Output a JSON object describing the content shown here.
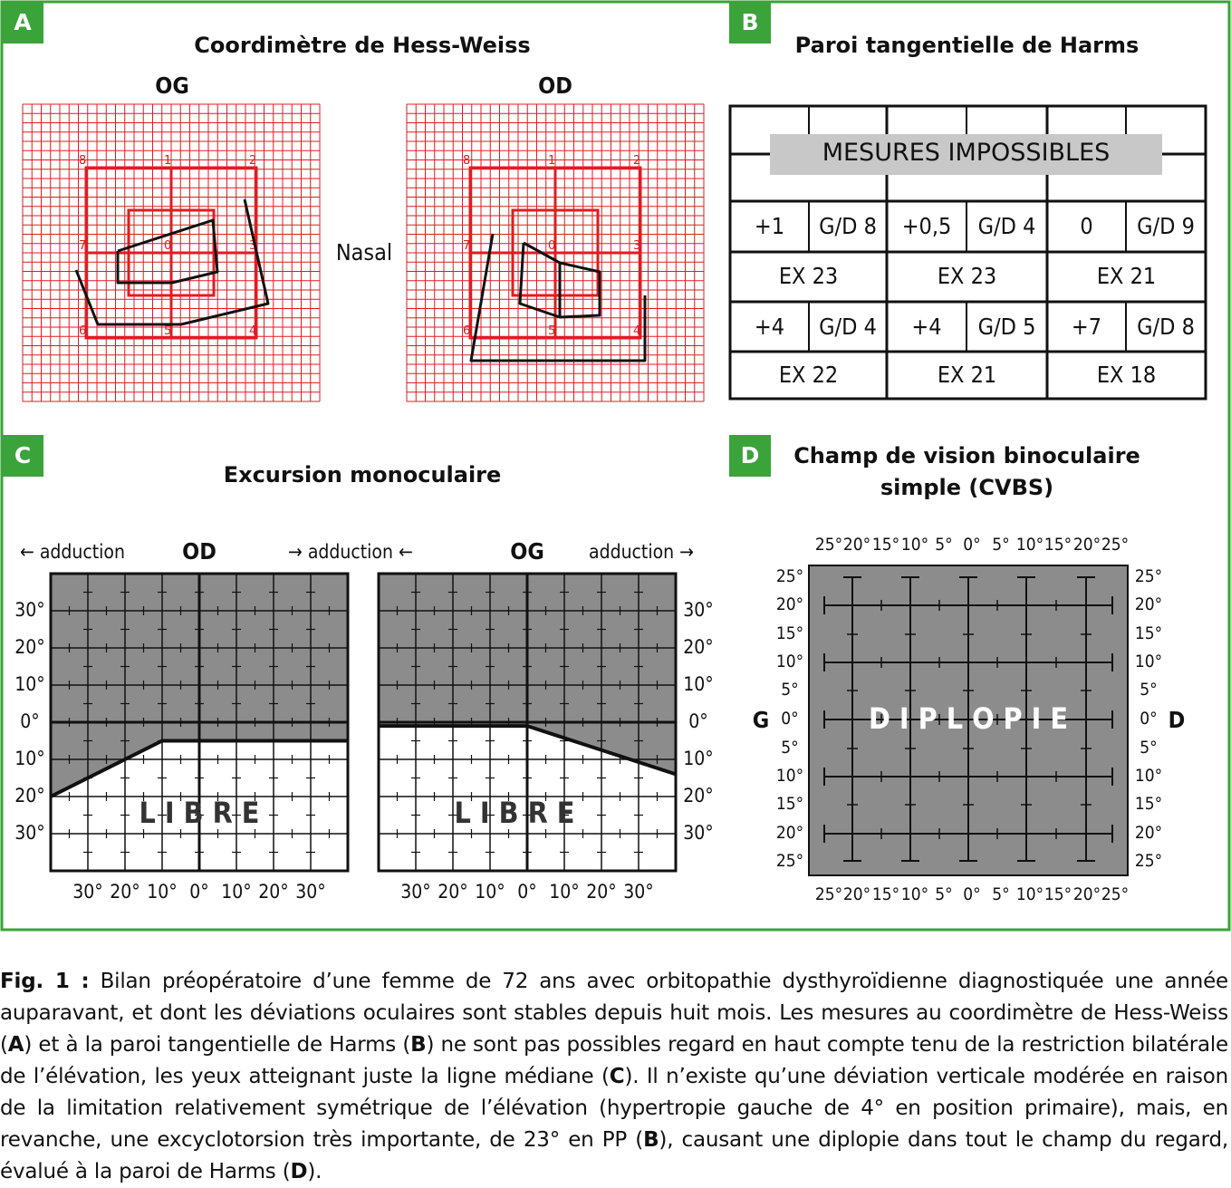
{
  "colors": {
    "frame": "#3aa33a",
    "grid_red": "#e11b22",
    "gray": "#8c8c8c",
    "table_band": "#c8c8c8"
  },
  "panelA": {
    "tag": "A",
    "title": "Coordimètre de Hess-Weiss",
    "og_label": "OG",
    "od_label": "OD",
    "nasal": "Nasal",
    "point_numbers": [
      "8",
      "1",
      "2",
      "7",
      "0",
      "3",
      "6",
      "5",
      "4"
    ]
  },
  "panelB": {
    "tag": "B",
    "title": "Paroi tangentielle de Harms",
    "banner": "MESURES IMPOSSIBLES",
    "row1": [
      "+1",
      "G/D 8",
      "+0,5",
      "G/D 4",
      "0",
      "G/D 9"
    ],
    "row2": [
      "EX 23",
      "EX 23",
      "EX 21"
    ],
    "row3": [
      "+4",
      "G/D 4",
      "+4",
      "G/D 5",
      "+7",
      "G/D 8"
    ],
    "row4": [
      "EX 22",
      "EX 21",
      "EX 18"
    ]
  },
  "panelC": {
    "tag": "C",
    "title": "Excursion monoculaire",
    "od_label": "OD",
    "og_label": "OG",
    "adduction_left": "← adduction",
    "adduction_mid": "→ adduction ←",
    "adduction_right": "adduction →",
    "y_ticks": [
      "30°",
      "20°",
      "10°",
      "0°",
      "10°",
      "20°",
      "30°"
    ],
    "x_ticks": [
      "30°",
      "20°",
      "10°",
      "0°",
      "10°",
      "20°",
      "30°"
    ],
    "libre": "L I B R E",
    "od_limit_deg": [
      [
        -40,
        -20
      ],
      [
        -10,
        -5
      ],
      [
        40,
        -5
      ]
    ],
    "og_limit_deg": [
      [
        -40,
        -1
      ],
      [
        0,
        -1
      ],
      [
        40,
        -14
      ]
    ]
  },
  "panelD": {
    "tag": "D",
    "title_line1": "Champ de vision binoculaire",
    "title_line2": "simple (CVBS)",
    "x_ticks": [
      "25°",
      "20°",
      "15°",
      "10°",
      "5°",
      "0°",
      "5°",
      "10°",
      "15°",
      "20°",
      "25°"
    ],
    "y_ticks": [
      "25°",
      "20°",
      "15°",
      "10°",
      "5°",
      "0°",
      "5°",
      "10°",
      "15°",
      "20°",
      "25°"
    ],
    "left_letter": "G",
    "right_letter": "D",
    "diplopie": "D I P L O P I E"
  },
  "caption": {
    "fig_label": "Fig. 1 :",
    "t1": " Bilan préopératoire d’une femme de 72 ans avec orbitopathie dysthyroïdienne diagnostiquée une année auparavant, et dont les déviations oculaires sont stables depuis huit mois. Les mesures au coordimètre de Hess-Weiss (",
    "b1": "A",
    "t2": ") et à la paroi tangentielle de Harms (",
    "b2": "B",
    "t3": ") ne sont pas possibles regard en haut compte tenu de la restriction bilatérale de l’élévation, les yeux atteignant juste la ligne médiane (",
    "b3": "C",
    "t4": "). Il n’existe qu’une déviation verticale modérée en raison de la limitation relativement symétrique de l’élévation (hypertropie gauche de 4° en position primaire), mais, en revanche, une excyclotorsion très importante, de 23° en PP (",
    "b4": "B",
    "t5": "), causant une diplopie dans tout le champ du regard, évalué à la paroi de Harms (",
    "b5": "D",
    "t6": ")."
  }
}
